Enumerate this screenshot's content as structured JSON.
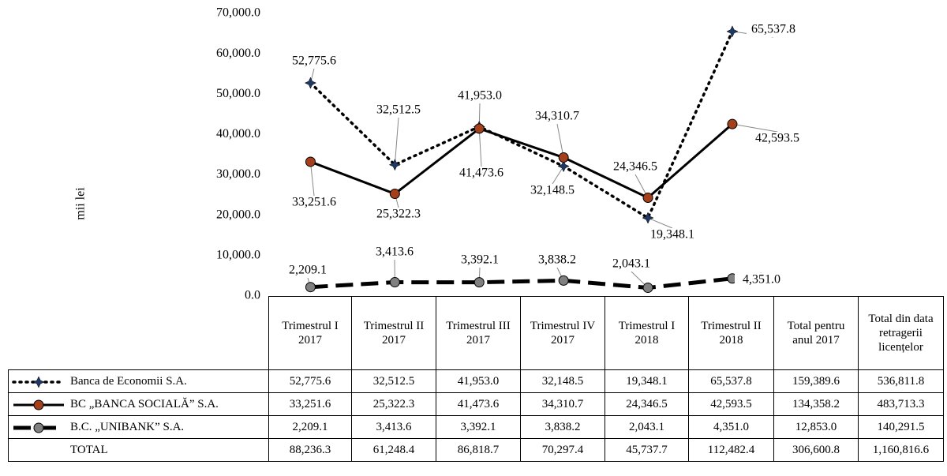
{
  "chart_data": {
    "type": "line",
    "y_label": "mii lei",
    "categories": [
      "Trimestrul I 2017",
      "Trimestrul II 2017",
      "Trimestrul III 2017",
      "Trimestrul IV 2017",
      "Trimestrul I 2018",
      "Trimestrul II 2018"
    ],
    "series": [
      {
        "name": "Banca de Economii S.A.",
        "color": "#000000",
        "marker_color": "#1f3864",
        "marker": "star",
        "style": "dotted",
        "values": [
          52775.6,
          32512.5,
          41953.0,
          32148.5,
          19348.1,
          65537.8
        ],
        "value_labels": [
          "52,775.6",
          "32,512.5",
          "41,953.0",
          "32,148.5",
          "19,348.1",
          "65,537.8"
        ]
      },
      {
        "name": "BC „BANCA SOCIALĂ” S.A.",
        "color": "#000000",
        "marker_color": "#a5401c",
        "marker": "circle",
        "style": "solid",
        "values": [
          33251.6,
          25322.3,
          41473.6,
          34310.7,
          24346.5,
          42593.5
        ],
        "value_labels": [
          "33,251.6",
          "25,322.3",
          "41,473.6",
          "34,310.7",
          "24,346.5",
          "42,593.5"
        ]
      },
      {
        "name": "B.C. „UNIBANK” S.A.",
        "color": "#000000",
        "marker_color": "#808080",
        "marker": "circle",
        "style": "dashed",
        "values": [
          2209.1,
          3413.6,
          3392.1,
          3838.2,
          2043.1,
          4351.0
        ],
        "value_labels": [
          "2,209.1",
          "3,413.6",
          "3,392.1",
          "3,838.2",
          "2,043.1",
          "4,351.0"
        ]
      }
    ],
    "ylim": [
      0,
      70000
    ],
    "yticks": [
      {
        "value": 0,
        "label": "0.0"
      },
      {
        "value": 10000,
        "label": "10,000.0"
      },
      {
        "value": 20000,
        "label": "20,000.0"
      },
      {
        "value": 30000,
        "label": "30,000.0"
      },
      {
        "value": 40000,
        "label": "40,000.0"
      },
      {
        "value": 50000,
        "label": "50,000.0"
      },
      {
        "value": 60000,
        "label": "60,000.0"
      },
      {
        "value": 70000,
        "label": "70,000.0"
      }
    ]
  },
  "table": {
    "total_columns": [
      "Total pentru anul 2017",
      "Total din data retragerii licențelor"
    ],
    "series_totals": [
      [
        "159,389.6",
        "536,811.8"
      ],
      [
        "134,358.2",
        "483,713.3"
      ],
      [
        "12,853.0",
        "140,291.5"
      ]
    ],
    "total_row": {
      "label": "TOTAL",
      "values": [
        "88,236.3",
        "61,248.4",
        "86,818.7",
        "70,297.4",
        "45,737.7",
        "112,482.4",
        "306,600.8",
        "1,160,816.6"
      ]
    }
  }
}
